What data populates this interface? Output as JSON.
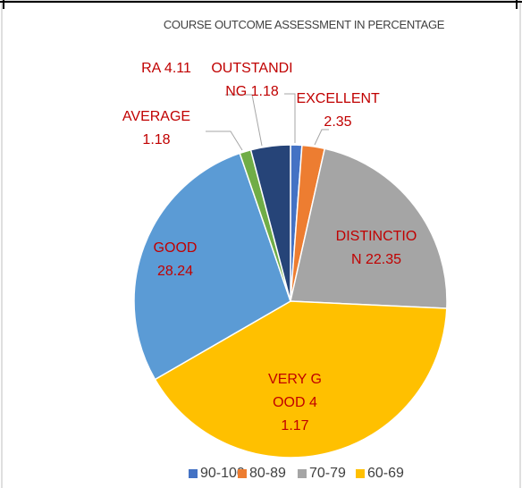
{
  "chart_data": {
    "type": "pie",
    "title": "COURSE OUTCOME ASSESSMENT IN PERCENTAGE",
    "categories": [
      "OUTSTANDING",
      "EXCELLENT",
      "DISTINCTION",
      "VERY GOOD",
      "GOOD",
      "AVERAGE",
      "RA"
    ],
    "values": [
      1.18,
      2.35,
      22.35,
      41.17,
      28.24,
      1.18,
      4.11
    ],
    "colors": [
      "#4472c4",
      "#ed7d31",
      "#a5a5a5",
      "#ffc000",
      "#5b9bd5",
      "#70ad47",
      "#264478"
    ],
    "legend": [
      "90-100",
      "80-89",
      "70-79",
      "60-69"
    ]
  }
}
